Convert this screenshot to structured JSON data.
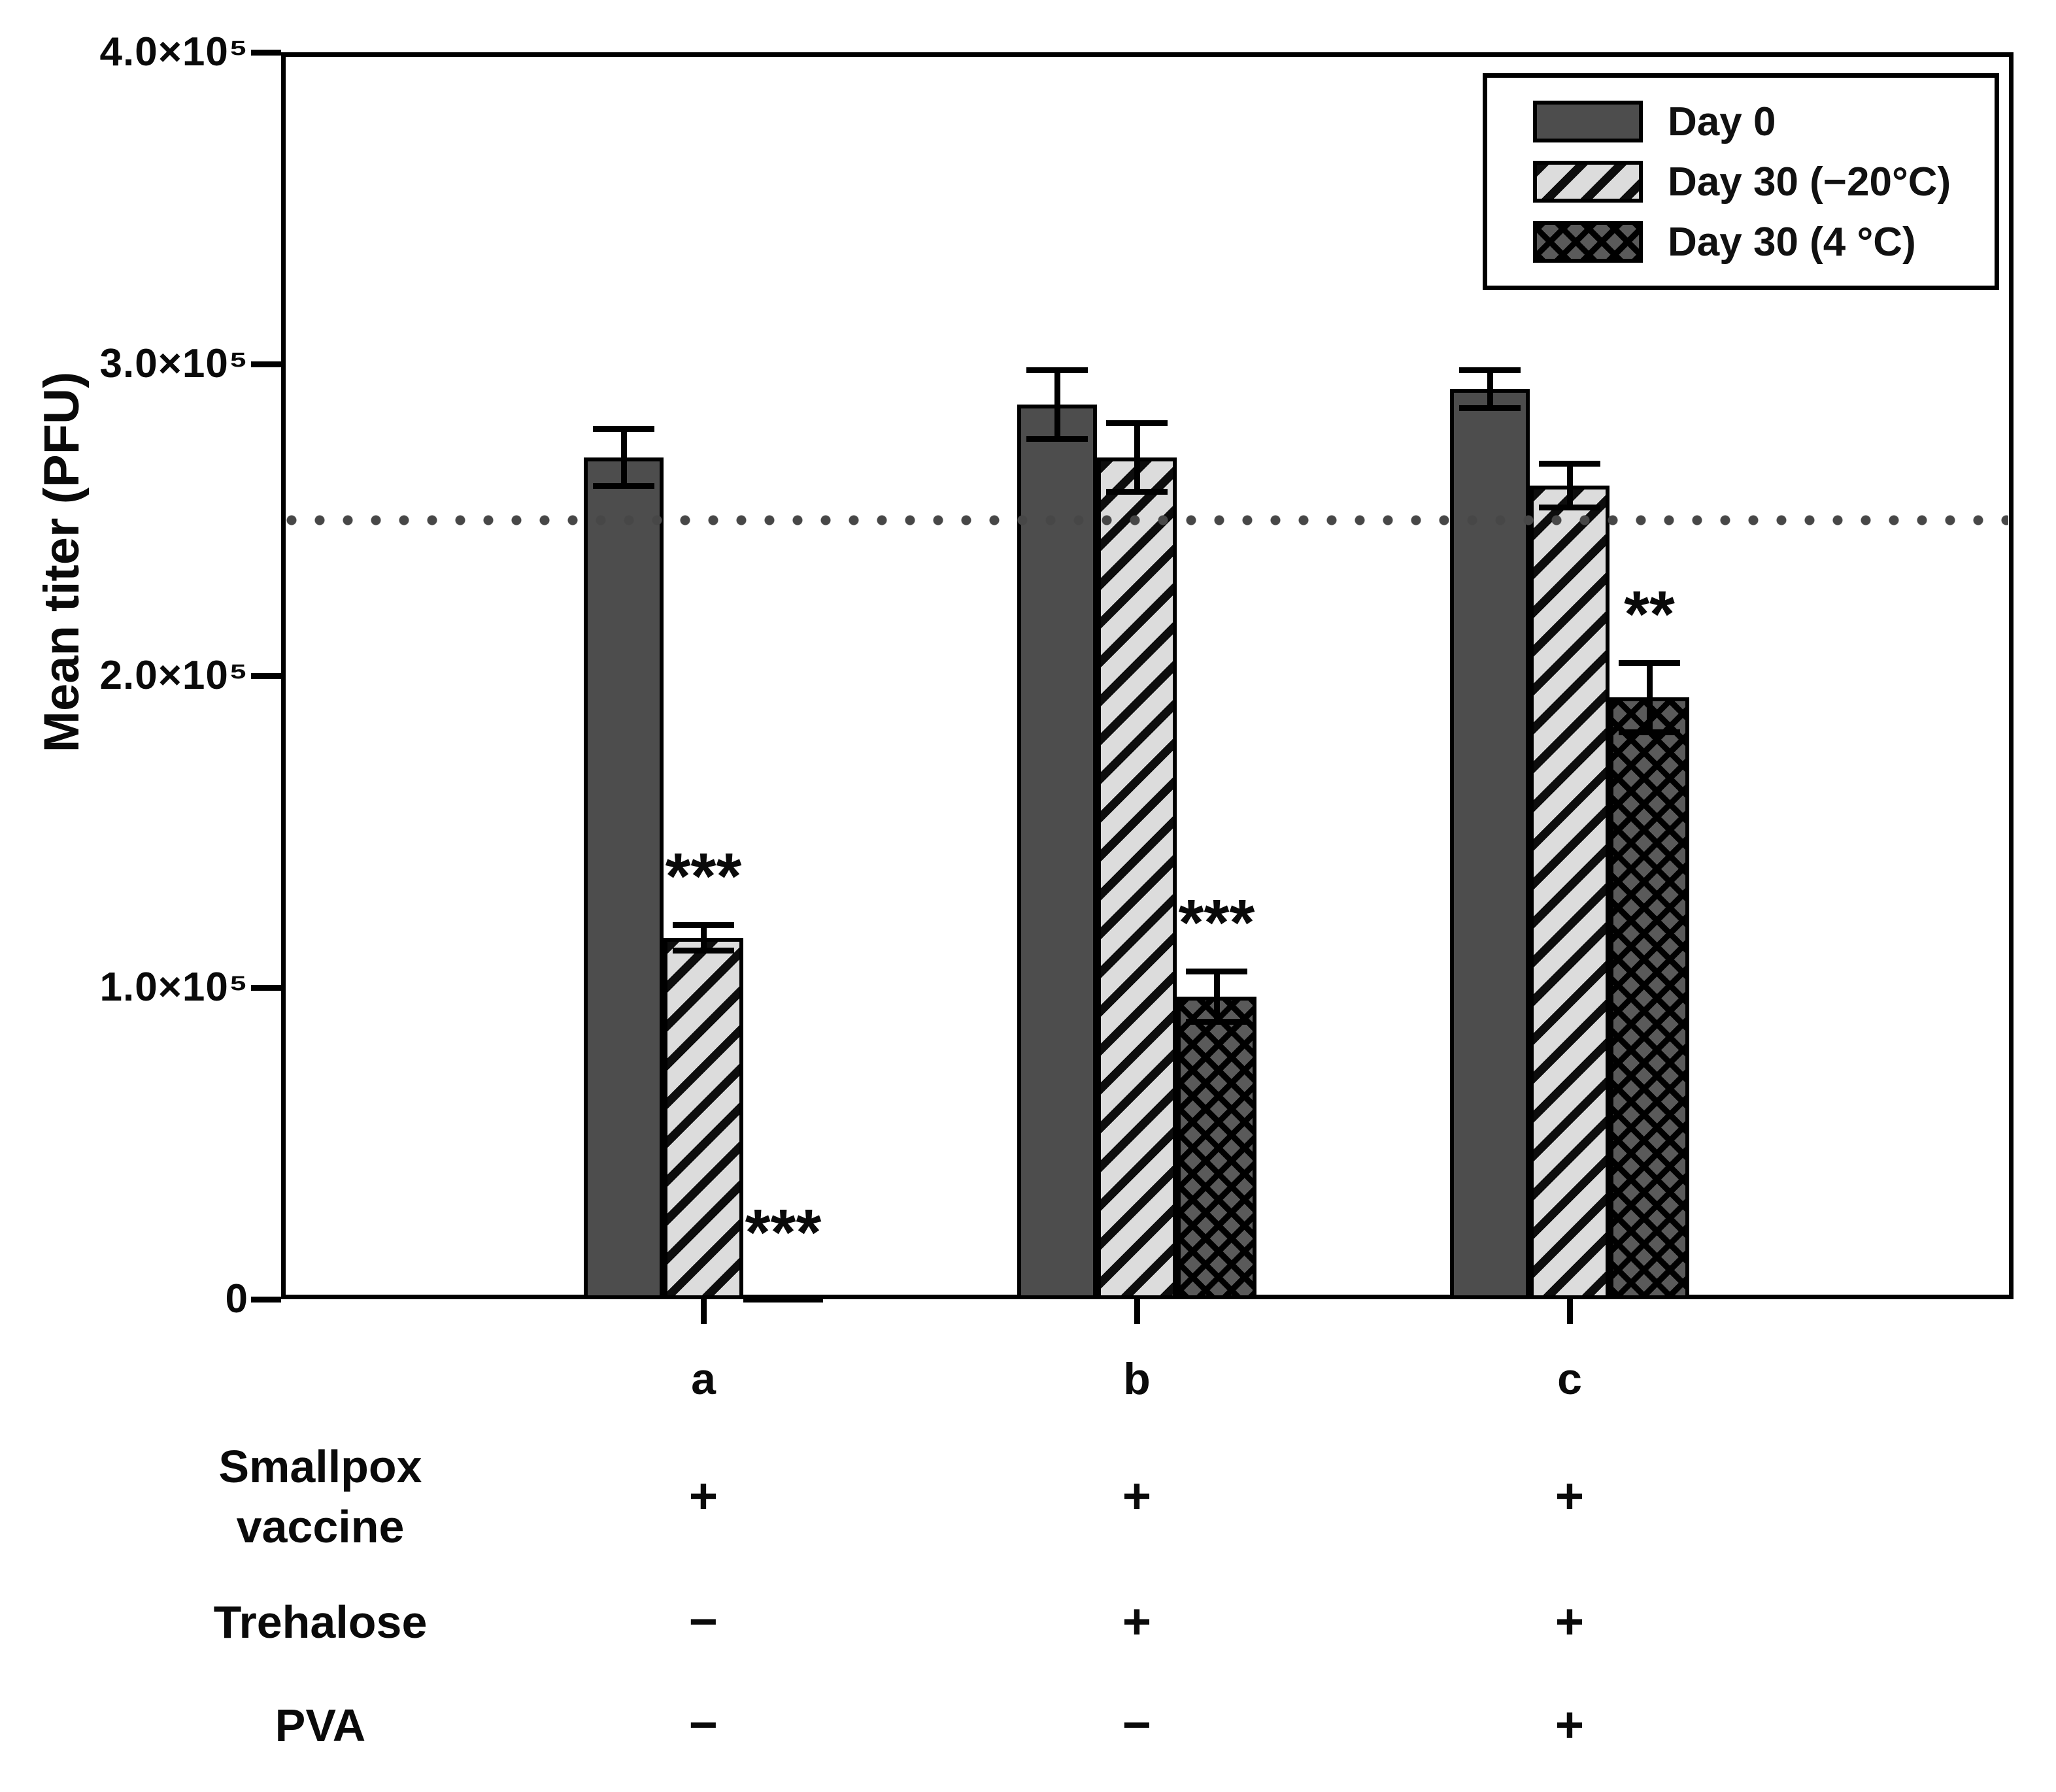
{
  "chart_data": {
    "type": "bar",
    "title": "",
    "ylabel": "Mean titer (PFU)",
    "ylim": [
      0,
      400000
    ],
    "grid": false,
    "legend_position": "top-right",
    "yticks": [
      {
        "label": "4.0×10⁵",
        "value": 400000
      },
      {
        "label": "3.0×10⁵",
        "value": 300000
      },
      {
        "label": "2.0×10⁵",
        "value": 200000
      },
      {
        "label": "1.0×10⁵",
        "value": 100000
      },
      {
        "label": "0",
        "value": 0
      }
    ],
    "reference_line": {
      "value": 250000,
      "style": "dotted"
    },
    "categories": [
      "a",
      "b",
      "c"
    ],
    "series": [
      {
        "name": "Day 0",
        "pattern": "solid",
        "values": [
          270000,
          287000,
          292000
        ],
        "errors": [
          10000,
          12000,
          7000
        ],
        "significance": [
          "",
          "",
          ""
        ]
      },
      {
        "name": "Day 30 (−20°C)",
        "pattern": "diagonal-hatch",
        "values": [
          116000,
          270000,
          261000
        ],
        "errors": [
          5000,
          12000,
          8000
        ],
        "significance": [
          "***",
          "",
          ""
        ]
      },
      {
        "name": "Day 30 (4 °C)",
        "pattern": "cross-hatch",
        "values": [
          1500,
          97000,
          193000
        ],
        "errors": [
          0,
          9000,
          12000
        ],
        "significance": [
          "***",
          "***",
          "**"
        ]
      }
    ],
    "condition_table": {
      "rows": [
        {
          "label": "Smallpox\nvaccine",
          "values": [
            "+",
            "+",
            "+"
          ]
        },
        {
          "label": "Trehalose",
          "values": [
            "−",
            "+",
            "+"
          ]
        },
        {
          "label": "PVA",
          "values": [
            "−",
            "−",
            "+"
          ]
        }
      ]
    }
  }
}
